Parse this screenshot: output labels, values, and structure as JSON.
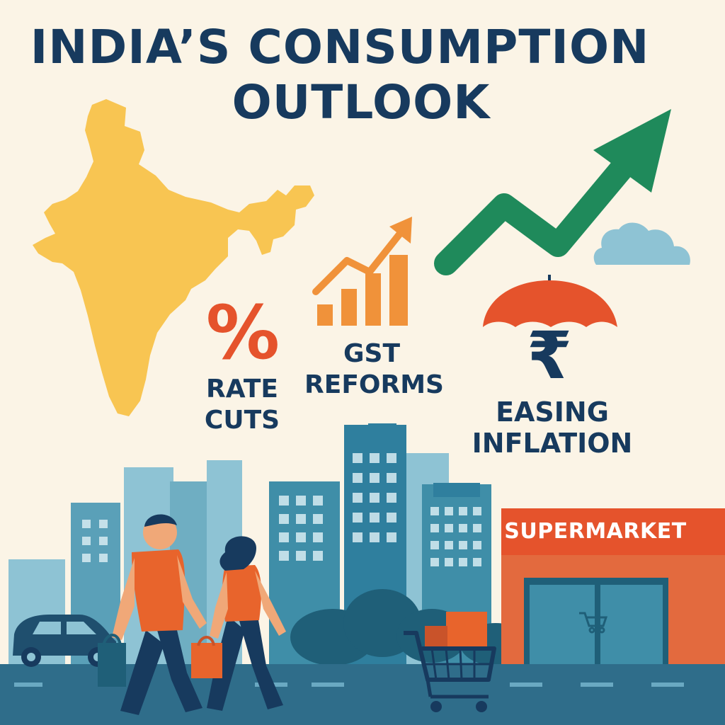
{
  "title": {
    "line1": "INDIA’S CONSUMPTION",
    "line2": "OUTLOOK"
  },
  "icons": {
    "percent": {
      "glyph": "%",
      "label_line1": "RATE",
      "label_line2": "CUTS",
      "icon": "percent-icon"
    },
    "gst": {
      "label_line1": "GST",
      "label_line2": "REFORMS",
      "icon": "bar-chart-arrow-icon"
    },
    "inflation": {
      "glyph": "₹",
      "label_line1": "EASING",
      "label_line2": "INFLATION",
      "icon": "umbrella-rupee-icon"
    }
  },
  "store": {
    "sign": "SUPERMARKET"
  },
  "colors": {
    "background": "#fbf4e6",
    "title": "#173a5e",
    "map": "#f8c552",
    "accent_orange": "#e5532c",
    "bar_orange": "#f0923a",
    "growth_green": "#1f8a5b",
    "city_blue": "#3f8ea8",
    "road": "#2f6d8a"
  }
}
